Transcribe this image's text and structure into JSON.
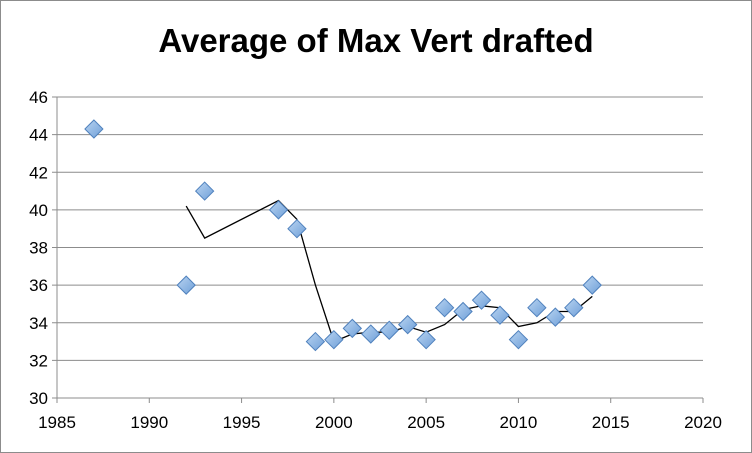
{
  "chart_data": {
    "type": "scatter",
    "title": "Average of Max Vert drafted",
    "xlabel": "",
    "ylabel": "",
    "xlim": [
      1985,
      2020
    ],
    "ylim": [
      30,
      46
    ],
    "x_ticks": [
      "1985",
      "1990",
      "1995",
      "2000",
      "2005",
      "2010",
      "2015",
      "2020"
    ],
    "y_ticks": [
      "30",
      "32",
      "34",
      "36",
      "38",
      "40",
      "42",
      "44",
      "46"
    ],
    "grid": "horizontal",
    "legend": "none",
    "series": [
      {
        "kind": "scatter",
        "marker": "diamond",
        "color": "#7aaee0",
        "points": [
          [
            1987,
            44.3
          ],
          [
            1992,
            36.0
          ],
          [
            1993,
            41.0
          ],
          [
            1997,
            40.0
          ],
          [
            1998,
            39.0
          ],
          [
            1999,
            33.0
          ],
          [
            2000,
            33.1
          ],
          [
            2001,
            33.7
          ],
          [
            2002,
            33.4
          ],
          [
            2003,
            33.6
          ],
          [
            2004,
            33.9
          ],
          [
            2005,
            33.1
          ],
          [
            2006,
            34.8
          ],
          [
            2007,
            34.6
          ],
          [
            2008,
            35.2
          ],
          [
            2009,
            34.4
          ],
          [
            2010,
            33.1
          ],
          [
            2011,
            34.8
          ],
          [
            2012,
            34.3
          ],
          [
            2013,
            34.8
          ],
          [
            2014,
            36.0
          ]
        ]
      },
      {
        "kind": "line",
        "color": "#000000",
        "points": [
          [
            1992,
            40.2
          ],
          [
            1993,
            38.5
          ],
          [
            1997,
            40.5
          ],
          [
            1998,
            39.5
          ],
          [
            1999,
            36.0
          ],
          [
            2000,
            33.0
          ],
          [
            2001,
            33.4
          ],
          [
            2002,
            33.5
          ],
          [
            2003,
            33.5
          ],
          [
            2004,
            33.8
          ],
          [
            2005,
            33.5
          ],
          [
            2006,
            33.9
          ],
          [
            2007,
            34.7
          ],
          [
            2008,
            34.9
          ],
          [
            2009,
            34.8
          ],
          [
            2010,
            33.8
          ],
          [
            2011,
            34.0
          ],
          [
            2012,
            34.6
          ],
          [
            2013,
            34.6
          ],
          [
            2014,
            35.4
          ]
        ]
      }
    ],
    "colors": {
      "marker_fill": "#7aaee0",
      "marker_stroke": "#4f81bd",
      "trend_line": "#000000",
      "grid": "#8c8c8c"
    }
  }
}
